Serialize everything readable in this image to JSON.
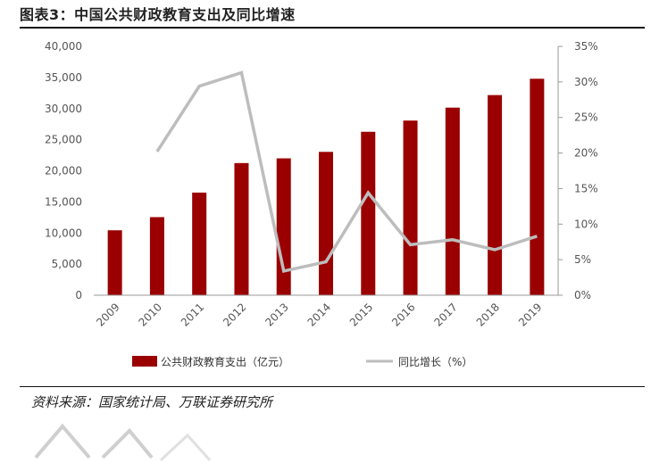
{
  "header": {
    "title": "图表3：中国公共财政教育支出及同比增速"
  },
  "footer": {
    "source": "资料来源：国家统计局、万联证券研究所"
  },
  "colors": {
    "bar": "#9b0000",
    "line": "#bdbdbd",
    "axis": "#999999",
    "text": "#555555"
  },
  "chart_data": {
    "type": "bar",
    "categories": [
      "2009",
      "2010",
      "2011",
      "2012",
      "2013",
      "2014",
      "2015",
      "2016",
      "2017",
      "2018",
      "2019"
    ],
    "series": [
      {
        "name": "公共财政教育支出（亿元）",
        "type": "bar",
        "axis": "left",
        "values": [
          10438,
          12550,
          16497,
          21242,
          22002,
          23042,
          26272,
          28073,
          30153,
          32170,
          34797
        ]
      },
      {
        "name": "同比增长（%）",
        "type": "line",
        "axis": "right",
        "values": [
          null,
          20.2,
          29.4,
          31.3,
          3.4,
          4.7,
          14.4,
          7.1,
          7.8,
          6.4,
          8.3
        ]
      }
    ],
    "y_left": {
      "min": 0,
      "max": 40000,
      "ticks": [
        "0",
        "5,000",
        "10,000",
        "15,000",
        "20,000",
        "25,000",
        "30,000",
        "35,000",
        "40,000"
      ]
    },
    "y_right": {
      "min": 0,
      "max": 35,
      "ticks": [
        "0%",
        "5%",
        "10%",
        "15%",
        "20%",
        "25%",
        "30%",
        "35%"
      ]
    },
    "legend": {
      "position": "bottom"
    },
    "grid": false
  }
}
